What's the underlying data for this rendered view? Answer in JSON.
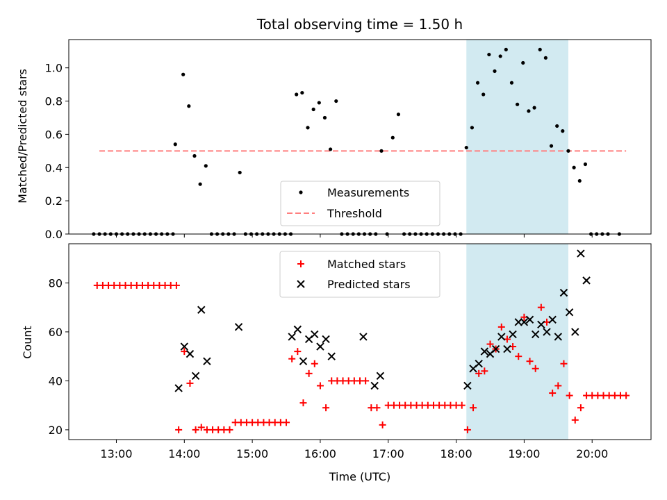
{
  "chart_data": [
    {
      "type": "scatter",
      "title": "Total observing time = 1.50 h",
      "xlabel": "",
      "ylabel": "Matched/Predicted stars",
      "ylim": [
        0,
        1.17
      ],
      "yticks": [
        "0.0",
        "0.2",
        "0.4",
        "0.6",
        "0.8",
        "1.0"
      ],
      "legend_position": "lower-center",
      "shaded_interval": [
        "18:09",
        "19:39"
      ],
      "shade_color": "#add8e6",
      "threshold": {
        "name": "Threshold",
        "value": 0.5,
        "from": "12:45",
        "to": "20:30",
        "color": "#ff7f7f"
      },
      "series": [
        {
          "name": "Measurements",
          "color": "#000000",
          "x": [
            "12:40",
            "12:45",
            "12:50",
            "12:55",
            "13:00",
            "13:05",
            "13:10",
            "13:15",
            "13:20",
            "13:25",
            "13:30",
            "13:35",
            "13:40",
            "13:45",
            "13:50",
            "13:52",
            "13:59",
            "14:04",
            "14:09",
            "14:14",
            "14:19",
            "14:24",
            "14:29",
            "14:34",
            "14:39",
            "14:44",
            "14:49",
            "14:54",
            "14:59",
            "15:04",
            "15:09",
            "15:14",
            "15:19",
            "15:24",
            "15:29",
            "15:34",
            "15:39",
            "15:44",
            "15:49",
            "15:54",
            "15:59",
            "16:04",
            "16:09",
            "16:14",
            "16:19",
            "16:24",
            "16:29",
            "16:34",
            "16:39",
            "16:44",
            "16:49",
            "16:54",
            "16:59",
            "17:04",
            "17:09",
            "17:14",
            "17:19",
            "17:24",
            "17:29",
            "17:34",
            "17:39",
            "17:44",
            "17:49",
            "17:54",
            "17:59",
            "18:04",
            "18:09",
            "18:14",
            "18:19",
            "18:24",
            "18:29",
            "18:34",
            "18:39",
            "18:44",
            "18:49",
            "18:54",
            "18:59",
            "19:04",
            "19:09",
            "19:14",
            "19:19",
            "19:24",
            "19:29",
            "19:34",
            "19:39",
            "19:44",
            "19:49",
            "19:54",
            "19:59",
            "20:04",
            "20:09",
            "20:14",
            "20:24"
          ],
          "y": [
            0,
            0,
            0,
            0,
            0,
            0,
            0,
            0,
            0,
            0,
            0,
            0,
            0,
            0,
            0,
            0.54,
            0.96,
            0.77,
            0.47,
            0.3,
            0.41,
            0,
            0,
            0,
            0,
            0,
            0.37,
            0,
            0,
            0,
            0,
            0,
            0,
            0,
            0,
            0,
            0.84,
            0.85,
            0.64,
            0.75,
            0.79,
            0.7,
            0.51,
            0.8,
            0,
            0,
            0,
            0,
            0,
            0,
            0,
            0.5,
            0,
            0.58,
            0.72,
            0,
            0,
            0,
            0,
            0,
            0,
            0,
            0,
            0,
            0,
            0,
            0.52,
            0.64,
            0.91,
            0.84,
            1.08,
            0.98,
            1.07,
            1.11,
            0.91,
            0.78,
            1.03,
            0.74,
            0.76,
            1.11,
            1.06,
            0.53,
            0.65,
            0.62,
            0.5,
            0.4,
            0.32,
            0.42,
            0,
            0,
            0,
            0,
            0
          ]
        }
      ]
    },
    {
      "type": "scatter",
      "title": "",
      "xlabel": "Time (UTC)",
      "ylabel": "Count",
      "ylim": [
        16,
        96
      ],
      "yticks": [
        20,
        40,
        60,
        80
      ],
      "xticks": [
        "13:00",
        "14:00",
        "15:00",
        "16:00",
        "17:00",
        "18:00",
        "19:00",
        "20:00"
      ],
      "xlim": [
        "12:18",
        "20:52"
      ],
      "legend_position": "upper-center",
      "shaded_interval": [
        "18:09",
        "19:39"
      ],
      "series": [
        {
          "name": "Matched stars",
          "color": "#ff0000",
          "marker": "plus",
          "x": [
            "12:43",
            "12:48",
            "12:53",
            "12:58",
            "13:03",
            "13:08",
            "13:13",
            "13:18",
            "13:23",
            "13:28",
            "13:33",
            "13:38",
            "13:43",
            "13:48",
            "13:53",
            "13:55",
            "14:00",
            "14:05",
            "14:10",
            "14:15",
            "14:20",
            "14:25",
            "14:30",
            "14:35",
            "14:40",
            "14:45",
            "14:50",
            "14:55",
            "15:00",
            "15:05",
            "15:10",
            "15:15",
            "15:20",
            "15:25",
            "15:30",
            "15:35",
            "15:40",
            "15:45",
            "15:50",
            "15:55",
            "16:00",
            "16:05",
            "16:10",
            "16:15",
            "16:20",
            "16:25",
            "16:30",
            "16:35",
            "16:40",
            "16:45",
            "16:50",
            "16:55",
            "17:00",
            "17:05",
            "17:10",
            "17:15",
            "17:20",
            "17:25",
            "17:30",
            "17:35",
            "17:40",
            "17:45",
            "17:50",
            "17:55",
            "18:00",
            "18:05",
            "18:10",
            "18:15",
            "18:20",
            "18:25",
            "18:30",
            "18:35",
            "18:40",
            "18:45",
            "18:50",
            "18:55",
            "19:00",
            "19:05",
            "19:10",
            "19:15",
            "19:20",
            "19:25",
            "19:30",
            "19:35",
            "19:40",
            "19:45",
            "19:50",
            "19:55",
            "20:00",
            "20:05",
            "20:10",
            "20:15",
            "20:20",
            "20:25",
            "20:30"
          ],
          "y": [
            79,
            79,
            79,
            79,
            79,
            79,
            79,
            79,
            79,
            79,
            79,
            79,
            79,
            79,
            79,
            20,
            52,
            39,
            20,
            21,
            20,
            20,
            20,
            20,
            20,
            23,
            23,
            23,
            23,
            23,
            23,
            23,
            23,
            23,
            23,
            49,
            52,
            31,
            43,
            47,
            38,
            29,
            40,
            40,
            40,
            40,
            40,
            40,
            40,
            29,
            29,
            22,
            30,
            30,
            30,
            30,
            30,
            30,
            30,
            30,
            30,
            30,
            30,
            30,
            30,
            30,
            20,
            29,
            43,
            44,
            55,
            53,
            62,
            57,
            54,
            50,
            66,
            48,
            45,
            70,
            64,
            35,
            38,
            47,
            34,
            24,
            29,
            34,
            34,
            34,
            34,
            34,
            34,
            34,
            34
          ]
        },
        {
          "name": "Predicted stars",
          "color": "#000000",
          "marker": "x",
          "x": [
            "13:55",
            "14:00",
            "14:05",
            "14:10",
            "14:15",
            "14:20",
            "14:48",
            "15:35",
            "15:40",
            "15:45",
            "15:50",
            "15:55",
            "16:00",
            "16:05",
            "16:10",
            "16:38",
            "16:48",
            "16:53",
            "18:10",
            "18:15",
            "18:20",
            "18:25",
            "18:30",
            "18:35",
            "18:40",
            "18:45",
            "18:50",
            "18:55",
            "19:00",
            "19:05",
            "19:10",
            "19:15",
            "19:20",
            "19:25",
            "19:30",
            "19:35",
            "19:40",
            "19:45",
            "19:50",
            "19:55"
          ],
          "y": [
            37,
            54,
            51,
            42,
            69,
            48,
            62,
            58,
            61,
            48,
            57,
            59,
            54,
            57,
            50,
            58,
            38,
            42,
            38,
            45,
            47,
            52,
            51,
            53,
            58,
            53,
            59,
            64,
            64,
            65,
            59,
            63,
            60,
            65,
            58,
            76,
            68,
            60,
            92,
            81
          ]
        }
      ]
    }
  ]
}
